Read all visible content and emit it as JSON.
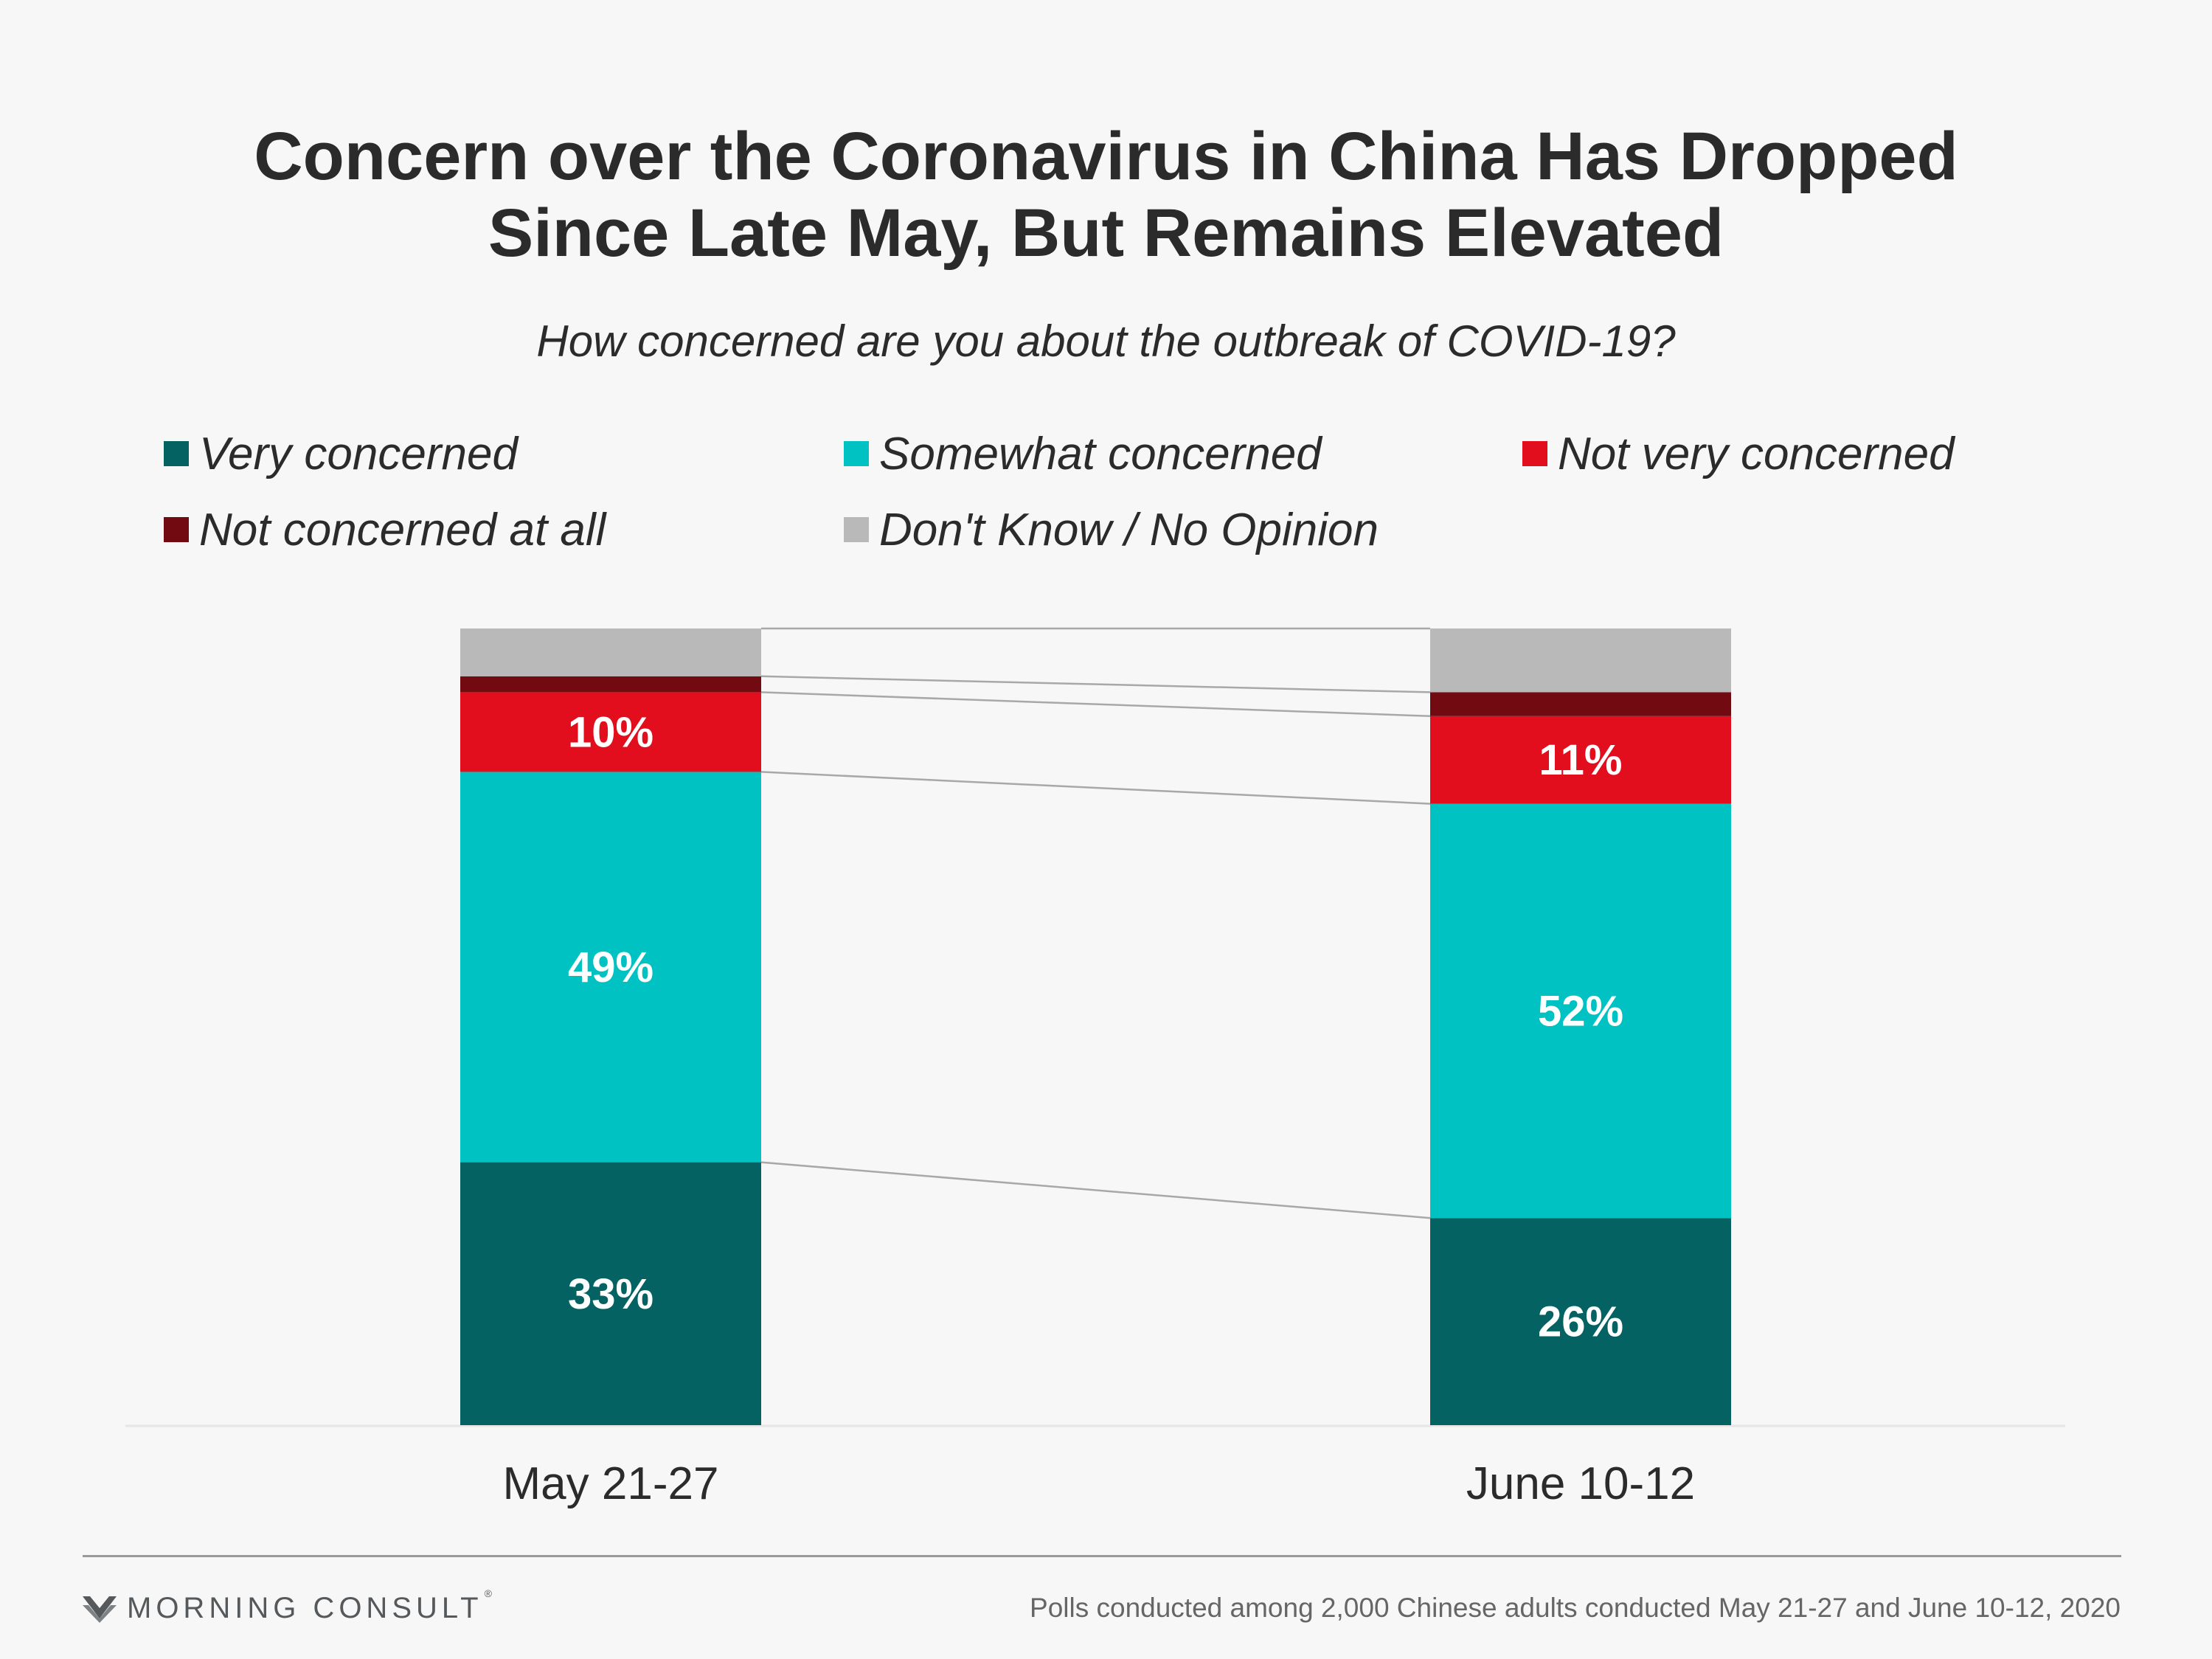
{
  "title_line1": "Concern over the Coronavirus in China Has Dropped",
  "title_line2": "Since Late May, But Remains Elevated",
  "subtitle": "How concerned are you about the outbreak of COVID-19?",
  "footer": {
    "brand": "MORNING CONSULT",
    "source": "Polls conducted among 2,000 Chinese adults conducted May 21-27 and June 10-12, 2020"
  },
  "chart_data": {
    "type": "bar",
    "stacked": true,
    "percent_stacked": true,
    "title": "Concern over the Coronavirus in China Has Dropped Since Late May, But Remains Elevated",
    "subtitle": "How concerned are you about the outbreak of COVID-19?",
    "categories": [
      "May 21-27",
      "June 10-12"
    ],
    "ylim": [
      0,
      100
    ],
    "grid": false,
    "legend_position": "top",
    "series": [
      {
        "name": "Very concerned",
        "color": "#046262",
        "values": [
          33,
          26
        ],
        "labels": [
          "33%",
          "26%"
        ]
      },
      {
        "name": "Somewhat concerned",
        "color": "#00c2c2",
        "values": [
          49,
          52
        ],
        "labels": [
          "49%",
          "52%"
        ]
      },
      {
        "name": "Not very concerned",
        "color": "#e20e1d",
        "values": [
          10,
          11
        ],
        "labels": [
          "10%",
          "11%"
        ]
      },
      {
        "name": "Not concerned at all",
        "color": "#720a12",
        "values": [
          2,
          3
        ],
        "labels": [
          "",
          ""
        ]
      },
      {
        "name": "Don't Know / No Opinion",
        "color": "#b9b9b9",
        "values": [
          6,
          8
        ],
        "labels": [
          "",
          ""
        ]
      }
    ]
  }
}
